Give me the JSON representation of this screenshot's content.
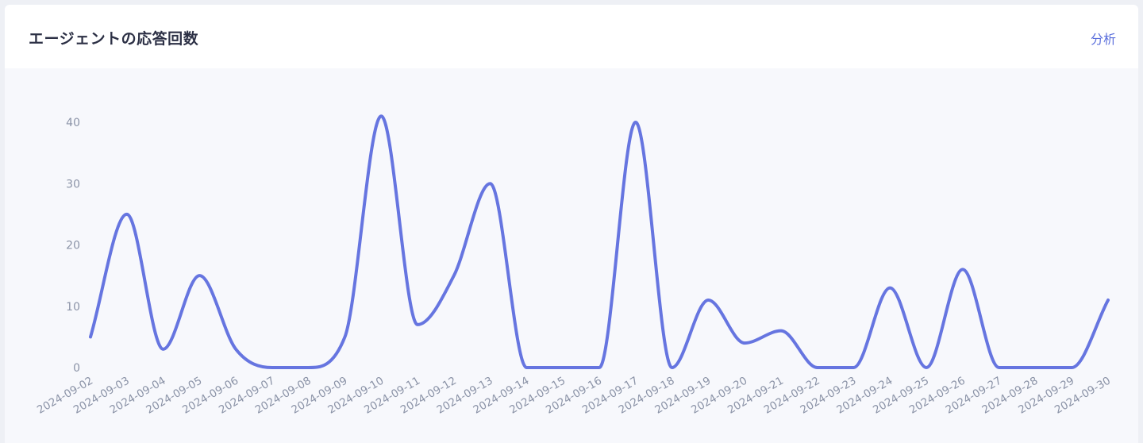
{
  "header": {
    "title": "エージェントの応答回数",
    "analyze_label": "分析"
  },
  "colors": {
    "line": "#6675e0",
    "tick_text": "#8b93a7"
  },
  "chart_data": {
    "type": "line",
    "smooth": true,
    "grid": false,
    "legend": "none",
    "x": [
      "2024-09-02",
      "2024-09-03",
      "2024-09-04",
      "2024-09-05",
      "2024-09-06",
      "2024-09-07",
      "2024-09-08",
      "2024-09-09",
      "2024-09-10",
      "2024-09-11",
      "2024-09-12",
      "2024-09-13",
      "2024-09-14",
      "2024-09-15",
      "2024-09-16",
      "2024-09-17",
      "2024-09-18",
      "2024-09-19",
      "2024-09-20",
      "2024-09-21",
      "2024-09-22",
      "2024-09-23",
      "2024-09-24",
      "2024-09-25",
      "2024-09-26",
      "2024-09-27",
      "2024-09-28",
      "2024-09-29",
      "2024-09-30"
    ],
    "series": [
      {
        "values": [
          5,
          25,
          3,
          15,
          3,
          0,
          0,
          5,
          41,
          7,
          15,
          30,
          0,
          0,
          0,
          40,
          0,
          11,
          4,
          6,
          0,
          0,
          13,
          0,
          16,
          0,
          0,
          0,
          11
        ]
      }
    ],
    "y_ticks": [
      0,
      10,
      20,
      30,
      40
    ],
    "ylim": [
      0,
      40
    ]
  }
}
